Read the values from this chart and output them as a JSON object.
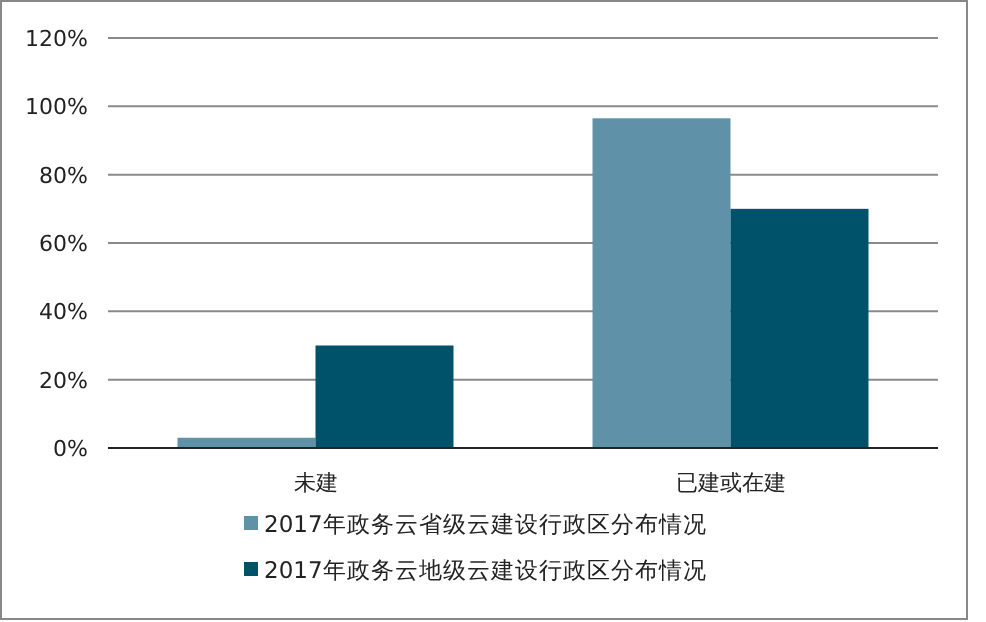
{
  "chart_data": {
    "type": "bar",
    "categories": [
      "未建",
      "已建或在建"
    ],
    "series": [
      {
        "name": "2017年政务云省级云建设行政区分布情况",
        "color": "#5f91a8",
        "values": [
          3,
          96.5
        ]
      },
      {
        "name": "2017年政务云地级云建设行政区分布情况",
        "color": "#00526b",
        "values": [
          30,
          70
        ]
      }
    ],
    "ylim": [
      0,
      120
    ],
    "yticks": [
      {
        "value": 0,
        "label": "0%"
      },
      {
        "value": 20,
        "label": "20%"
      },
      {
        "value": 40,
        "label": "40%"
      },
      {
        "value": 60,
        "label": "60%"
      },
      {
        "value": 80,
        "label": "80%"
      },
      {
        "value": 100,
        "label": "100%"
      },
      {
        "value": 120,
        "label": "120%"
      }
    ],
    "grid": "y",
    "legend": "bottom"
  }
}
